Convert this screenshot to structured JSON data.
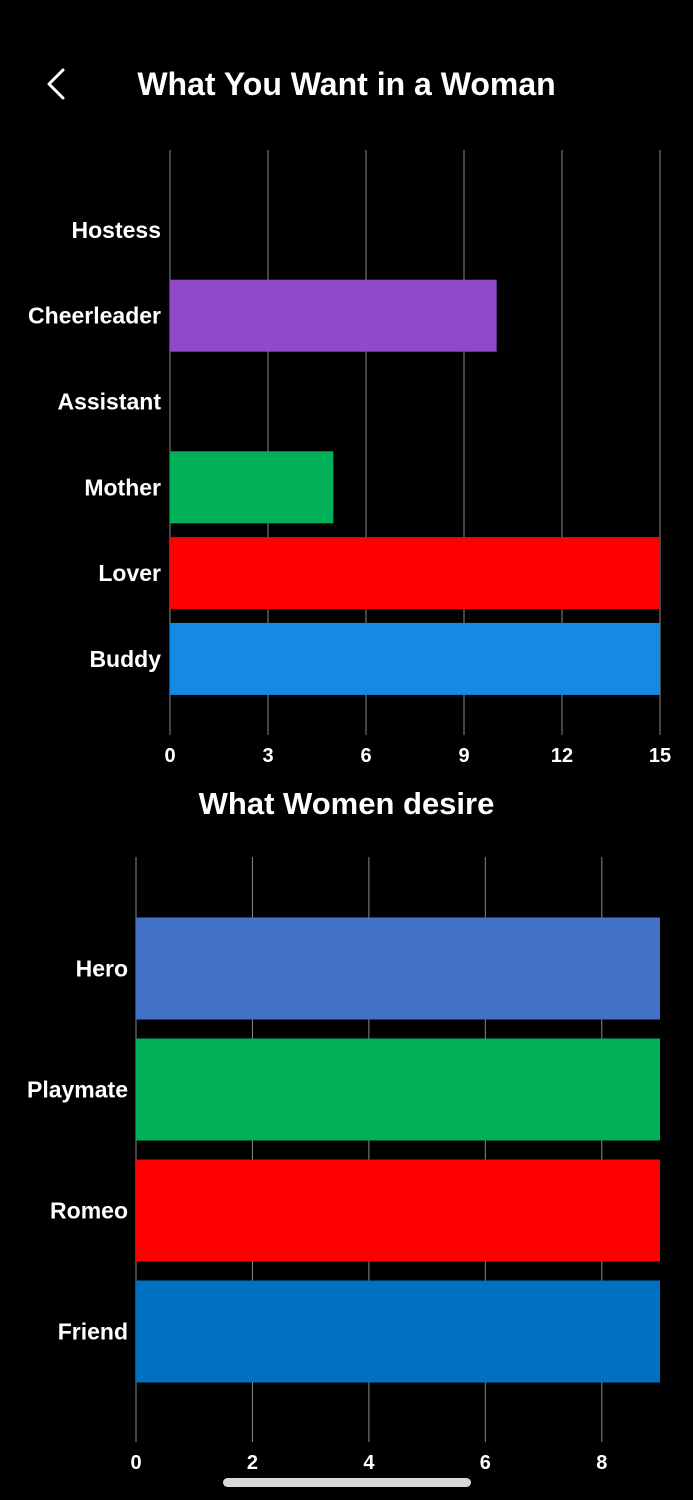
{
  "header": {
    "title": "What You Want in a Woman",
    "back_icon": "chevron-left-icon"
  },
  "chart_data": [
    {
      "type": "bar",
      "orientation": "horizontal",
      "title": "",
      "categories": [
        "Hostess",
        "Cheerleader",
        "Assistant",
        "Mother",
        "Lover",
        "Buddy"
      ],
      "values": [
        0,
        10,
        0,
        5,
        15,
        15
      ],
      "colors": [
        "#8e4ac9",
        "#8e4ac9",
        "#00b15a",
        "#00b15a",
        "#ff0000",
        "#158ae2"
      ],
      "xlim": [
        0,
        15
      ],
      "xticks": [
        "0",
        "3",
        "6",
        "9",
        "12",
        "15"
      ],
      "grid": true,
      "xlabel": "",
      "ylabel": ""
    },
    {
      "type": "bar",
      "orientation": "horizontal",
      "title": "What Women desire",
      "categories": [
        "Hero",
        "Playmate",
        "Romeo",
        "Friend"
      ],
      "values": [
        9,
        9,
        9,
        9
      ],
      "colors": [
        "#4472c8",
        "#00b15a",
        "#ff0000",
        "#0070c0"
      ],
      "xlim": [
        0,
        9
      ],
      "xticks": [
        "0",
        "2",
        "4",
        "6",
        "8"
      ],
      "grid": true,
      "xlabel": "",
      "ylabel": ""
    }
  ]
}
